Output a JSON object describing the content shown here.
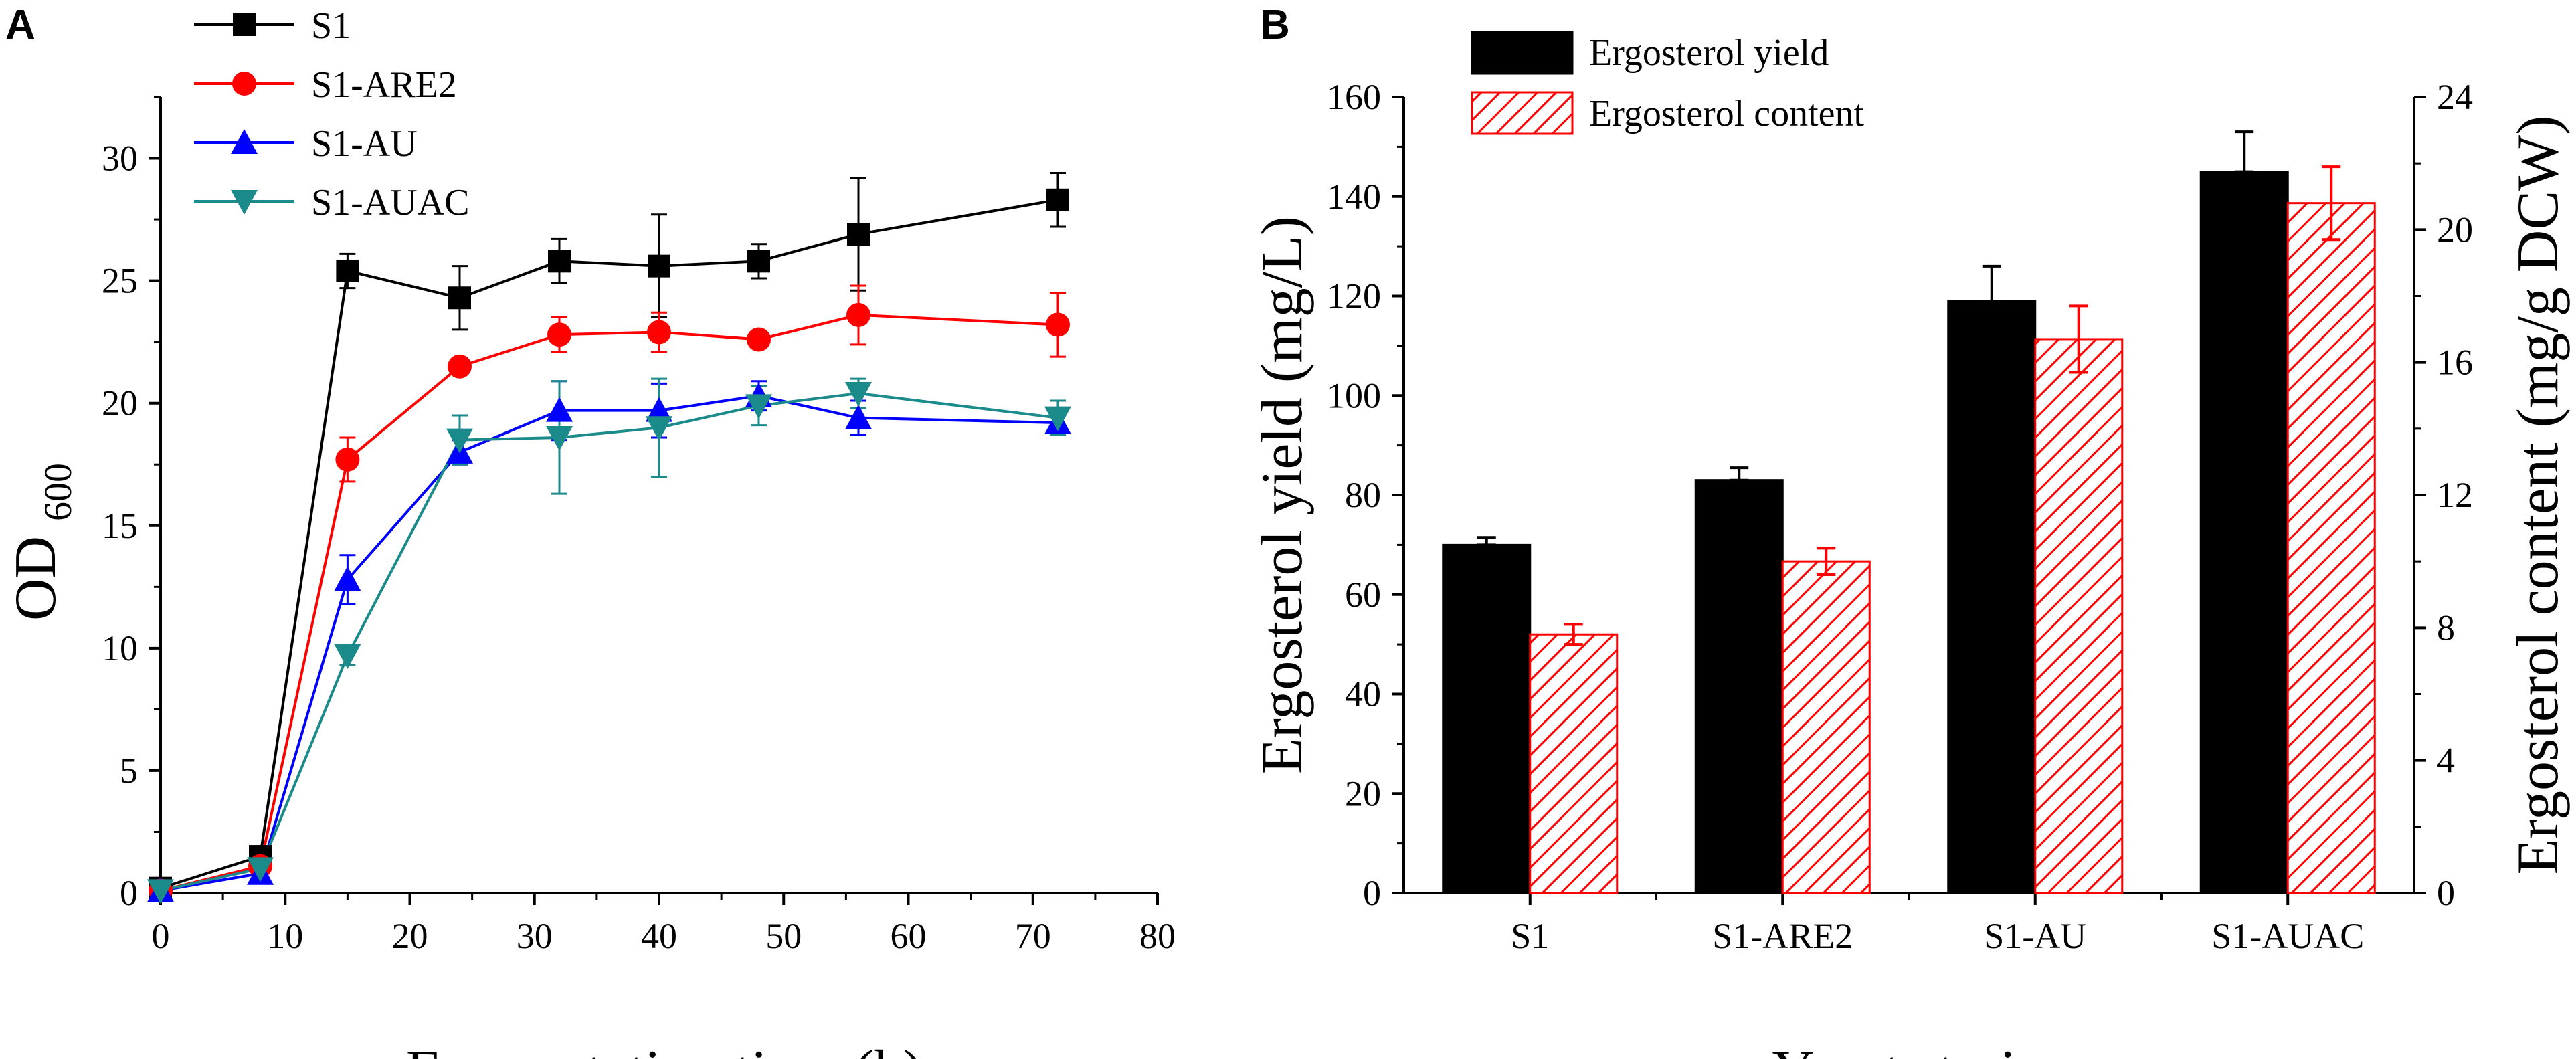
{
  "chart_data": [
    {
      "panel": "A",
      "type": "line",
      "xlabel": "Fermentation time (h)",
      "ylabel": "OD",
      "ylabel_sub": "600",
      "xlim": [
        0,
        80
      ],
      "ylim": [
        0,
        32.5
      ],
      "xticks": [
        0,
        10,
        20,
        30,
        40,
        50,
        60,
        70,
        80
      ],
      "yticks": [
        0,
        5,
        10,
        15,
        20,
        25,
        30
      ],
      "legend_position": "top-left",
      "x": [
        0,
        8,
        15,
        24,
        32,
        40,
        48,
        56,
        72
      ],
      "series": [
        {
          "name": "S1",
          "color": "#000000",
          "marker": "square",
          "values": [
            0.2,
            1.5,
            25.4,
            24.3,
            25.8,
            25.6,
            25.8,
            26.9,
            28.3
          ],
          "errors": [
            0.1,
            0.4,
            0.7,
            1.3,
            0.9,
            2.1,
            0.7,
            2.3,
            1.1
          ]
        },
        {
          "name": "S1-ARE2",
          "color": "#ff0000",
          "marker": "circle",
          "values": [
            0.1,
            1.1,
            17.7,
            21.5,
            22.8,
            22.9,
            22.6,
            23.6,
            23.2
          ],
          "errors": [
            0.1,
            0.3,
            0.9,
            0.3,
            0.7,
            0.8,
            0.2,
            1.2,
            1.3
          ]
        },
        {
          "name": "S1-AU",
          "color": "#0000ff",
          "marker": "triangle-up",
          "values": [
            0.1,
            0.8,
            12.8,
            18.0,
            19.7,
            19.7,
            20.3,
            19.4,
            19.2
          ],
          "errors": [
            0.1,
            0.2,
            1.0,
            0.5,
            1.2,
            1.1,
            0.6,
            0.7,
            0.3
          ]
        },
        {
          "name": "S1-AUAC",
          "color": "#1a8a8a",
          "marker": "triangle-down",
          "values": [
            0.1,
            1.0,
            9.7,
            18.5,
            18.6,
            19.0,
            19.9,
            20.4,
            19.4
          ],
          "errors": [
            0.1,
            0.2,
            0.4,
            1.0,
            2.3,
            2.0,
            0.8,
            0.6,
            0.7
          ]
        }
      ]
    },
    {
      "panel": "B",
      "type": "bar",
      "xlabel": "Yeast strains",
      "ylabel": "Ergosterol yield (mg/L)",
      "y2label": "Ergosterol content (mg/g DCW)",
      "categories": [
        "S1",
        "S1-ARE2",
        "S1-AU",
        "S1-AUAC"
      ],
      "ylim": [
        0,
        160
      ],
      "y2lim": [
        0,
        24
      ],
      "yticks": [
        0,
        20,
        40,
        60,
        80,
        100,
        120,
        140,
        160
      ],
      "y2ticks": [
        0,
        4,
        8,
        12,
        16,
        20,
        24
      ],
      "legend_position": "top-left",
      "series": [
        {
          "name": "Ergosterol yield",
          "axis": "left",
          "fill": "#000000",
          "pattern": "solid",
          "values": [
            70,
            83,
            119,
            145
          ],
          "errors": [
            1.5,
            2.5,
            7,
            8
          ]
        },
        {
          "name": "Ergosterol content",
          "axis": "right",
          "fill": "#ff0000",
          "pattern": "diagonal-hatch",
          "values": [
            7.8,
            10.0,
            16.7,
            20.8
          ],
          "errors": [
            0.3,
            0.4,
            1.0,
            1.1
          ]
        }
      ]
    }
  ],
  "panels": {
    "a_letter": "A",
    "b_letter": "B"
  }
}
